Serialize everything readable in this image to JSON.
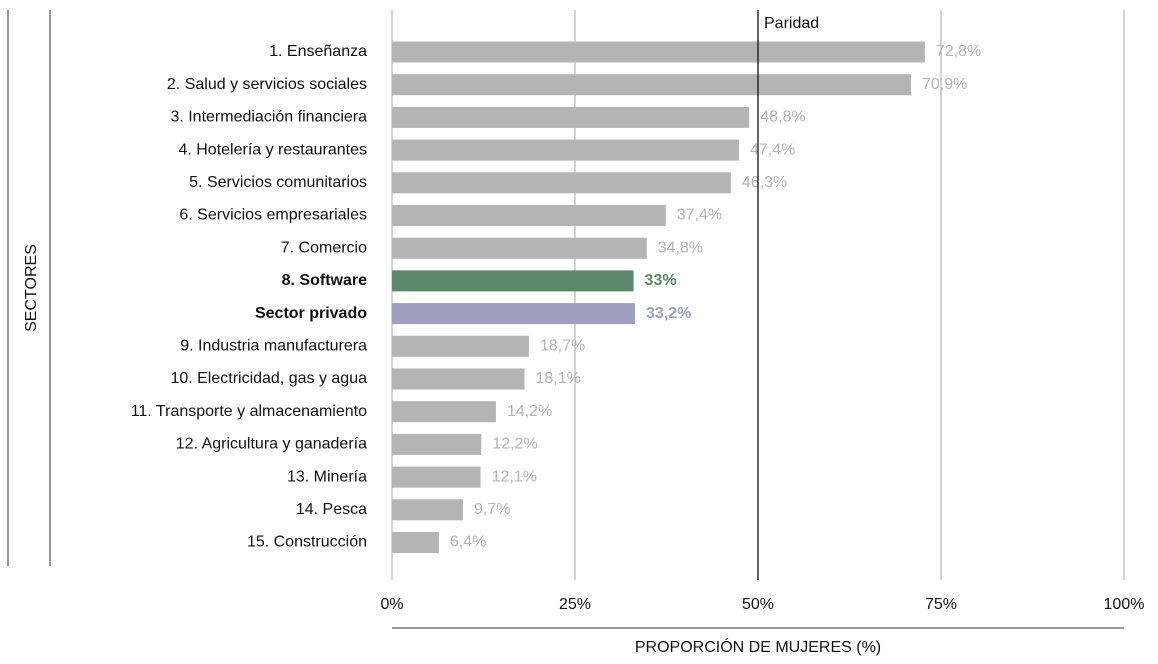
{
  "chart_data": {
    "type": "barh",
    "y_label": "SECTORES",
    "x_label": "PROPORCIÓN DE MUJERES (%)",
    "categories": [
      "1. Enseñanza",
      "2. Salud y servicios sociales",
      "3. Intermediación financiera",
      "4. Hotelería y restaurantes",
      "5. Servicios comunitarios",
      "6. Servicios empresariales",
      "7. Comercio",
      "8. Software",
      "Sector privado",
      "9. Industria manufacturera",
      "10. Electricidad, gas y agua",
      "11. Transporte y almacenamiento",
      "12. Agricultura y ganadería",
      "13. Minería",
      "14. Pesca",
      "15. Construcción"
    ],
    "values": [
      72.8,
      70.9,
      48.8,
      47.4,
      46.3,
      37.4,
      34.8,
      33,
      33.2,
      18.7,
      18.1,
      14.2,
      12.2,
      12.1,
      9.7,
      6.4
    ],
    "value_labels": [
      "72,8%",
      "70,9%",
      "48,8%",
      "47,4%",
      "46,3%",
      "37,4%",
      "34,8%",
      "33%",
      "33,2%",
      "18,7%",
      "18,1%",
      "14,2%",
      "12,2%",
      "12,1%",
      "9,7%",
      "6,4%"
    ],
    "colors": [
      "#b4b4b4",
      "#b4b4b4",
      "#b4b4b4",
      "#b4b4b4",
      "#b4b4b4",
      "#b4b4b4",
      "#b4b4b4",
      "#5b876b",
      "#9f9fc2",
      "#b4b4b4",
      "#b4b4b4",
      "#b4b4b4",
      "#b4b4b4",
      "#b4b4b4",
      "#b4b4b4",
      "#b4b4b4"
    ],
    "bold_categories": [
      7,
      8
    ],
    "xlim": [
      0,
      100
    ],
    "xticks": [
      {
        "value": 0,
        "label": "0%"
      },
      {
        "value": 25,
        "label": "25%"
      },
      {
        "value": 50,
        "label": "50%"
      },
      {
        "value": 75,
        "label": "75%"
      },
      {
        "value": 100,
        "label": "100%"
      }
    ],
    "grid": true,
    "reference_line": {
      "value": 50,
      "label": "Paridad"
    }
  }
}
